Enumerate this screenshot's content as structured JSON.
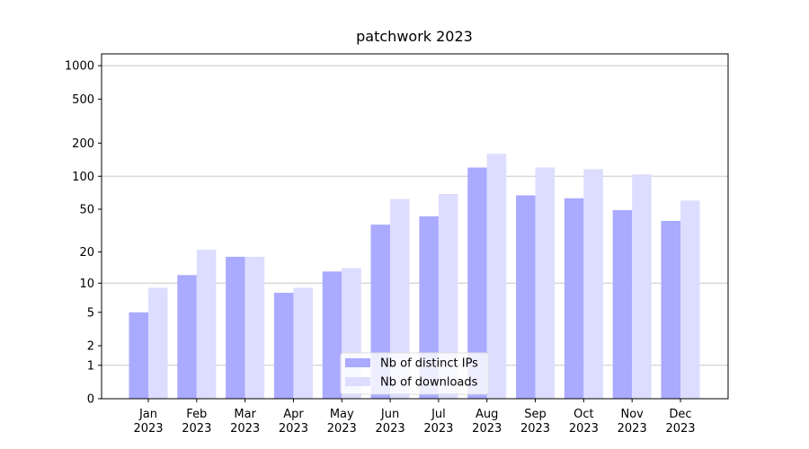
{
  "chart_data": {
    "type": "bar",
    "title": "patchwork 2023",
    "categories": [
      "Jan\n2023",
      "Feb\n2023",
      "Mar\n2023",
      "Apr\n2023",
      "May\n2023",
      "Jun\n2023",
      "Jul\n2023",
      "Aug\n2023",
      "Sep\n2023",
      "Oct\n2023",
      "Nov\n2023",
      "Dec\n2023"
    ],
    "series": [
      {
        "name": "Nb of distinct IPs",
        "color": "#aaaaff",
        "values": [
          5,
          12,
          18,
          8,
          13,
          36,
          43,
          120,
          67,
          63,
          49,
          39
        ]
      },
      {
        "name": "Nb of downloads",
        "color": "#ddddff",
        "values": [
          9,
          21,
          18,
          9,
          14,
          62,
          69,
          160,
          120,
          116,
          104,
          60
        ]
      }
    ],
    "yscale": "log1p",
    "ylim": [
      0,
      1278
    ],
    "yticks": [
      0,
      1,
      2,
      5,
      10,
      20,
      50,
      100,
      200,
      500,
      1000
    ],
    "grid_ticks": [
      1,
      10,
      100,
      1000
    ],
    "legend": "lower center"
  }
}
